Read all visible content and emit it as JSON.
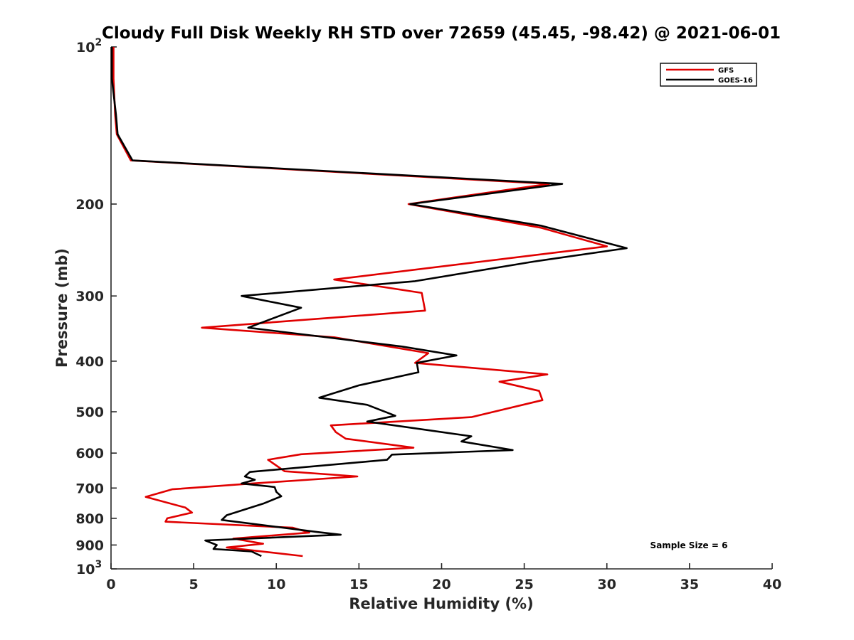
{
  "chart_data": {
    "type": "line",
    "title": "Cloudy Full Disk Weekly RH STD over 72659 (45.45, -98.42) @ 2021-06-01",
    "xlabel": "Relative Humidity (%)",
    "ylabel": "Pressure (mb)",
    "xlim": [
      0,
      40
    ],
    "ylim": [
      100,
      1000
    ],
    "y_scale": "log",
    "y_reversed": true,
    "x_ticks": [
      0,
      5,
      10,
      15,
      20,
      25,
      30,
      35,
      40
    ],
    "y_ticks": [
      {
        "value": 100,
        "label": "10",
        "sup": "2"
      },
      {
        "value": 200,
        "label": "200"
      },
      {
        "value": 300,
        "label": "300"
      },
      {
        "value": 400,
        "label": "400"
      },
      {
        "value": 500,
        "label": "500"
      },
      {
        "value": 600,
        "label": "600"
      },
      {
        "value": 700,
        "label": "700"
      },
      {
        "value": 800,
        "label": "800"
      },
      {
        "value": 900,
        "label": "900"
      },
      {
        "value": 1000,
        "label": "10",
        "sup": "3"
      }
    ],
    "grid": false,
    "legend_position": "top-right",
    "annotation": "Sample Size = 6",
    "series": [
      {
        "name": "GFS",
        "color": "#e00000",
        "points": [
          [
            0.15,
            100
          ],
          [
            0.15,
            115
          ],
          [
            0.25,
            135
          ],
          [
            0.35,
            147
          ],
          [
            1.2,
            165
          ],
          [
            26.5,
            183
          ],
          [
            18.0,
            200
          ],
          [
            26.0,
            222
          ],
          [
            30.0,
            241
          ],
          [
            13.5,
            279
          ],
          [
            18.8,
            296
          ],
          [
            19.0,
            320
          ],
          [
            5.5,
            345
          ],
          [
            13.5,
            360
          ],
          [
            19.2,
            386
          ],
          [
            18.4,
            403
          ],
          [
            26.4,
            424
          ],
          [
            23.5,
            438
          ],
          [
            25.9,
            456
          ],
          [
            26.1,
            475
          ],
          [
            21.8,
            512
          ],
          [
            13.3,
            531
          ],
          [
            13.6,
            547
          ],
          [
            14.2,
            563
          ],
          [
            18.3,
            586
          ],
          [
            11.5,
            603
          ],
          [
            9.5,
            618
          ],
          [
            10.5,
            650
          ],
          [
            14.9,
            665
          ],
          [
            8.3,
            687
          ],
          [
            3.7,
            704
          ],
          [
            2.1,
            728
          ],
          [
            4.5,
            763
          ],
          [
            4.9,
            780
          ],
          [
            3.4,
            800
          ],
          [
            3.3,
            812
          ],
          [
            11.0,
            834
          ],
          [
            12.0,
            852
          ],
          [
            7.4,
            875
          ],
          [
            9.2,
            895
          ],
          [
            7.0,
            910
          ],
          [
            11.6,
            945
          ]
        ]
      },
      {
        "name": "GOES-16",
        "color": "#000000",
        "points": [
          [
            0.05,
            100
          ],
          [
            0.05,
            115
          ],
          [
            0.3,
            135
          ],
          [
            0.4,
            147
          ],
          [
            1.3,
            165
          ],
          [
            27.3,
            183
          ],
          [
            18.1,
            200
          ],
          [
            26.0,
            220
          ],
          [
            31.2,
            243
          ],
          [
            25.5,
            258
          ],
          [
            18.4,
            281
          ],
          [
            7.9,
            300
          ],
          [
            11.5,
            316
          ],
          [
            8.3,
            345
          ],
          [
            17.6,
            375
          ],
          [
            20.9,
            390
          ],
          [
            18.5,
            403
          ],
          [
            18.6,
            420
          ],
          [
            15.0,
            445
          ],
          [
            12.6,
            470
          ],
          [
            15.5,
            485
          ],
          [
            17.2,
            509
          ],
          [
            15.5,
            522
          ],
          [
            21.8,
            557
          ],
          [
            21.2,
            570
          ],
          [
            24.3,
            592
          ],
          [
            17.0,
            604
          ],
          [
            16.7,
            618
          ],
          [
            8.4,
            652
          ],
          [
            8.1,
            665
          ],
          [
            8.7,
            675
          ],
          [
            7.9,
            686
          ],
          [
            9.9,
            697
          ],
          [
            10.0,
            712
          ],
          [
            10.3,
            726
          ],
          [
            9.2,
            750
          ],
          [
            7.0,
            789
          ],
          [
            6.7,
            806
          ],
          [
            12.5,
            850
          ],
          [
            13.9,
            860
          ],
          [
            5.7,
            882
          ],
          [
            6.4,
            900
          ],
          [
            6.2,
            916
          ],
          [
            8.5,
            926
          ],
          [
            9.1,
            945
          ]
        ]
      }
    ]
  }
}
